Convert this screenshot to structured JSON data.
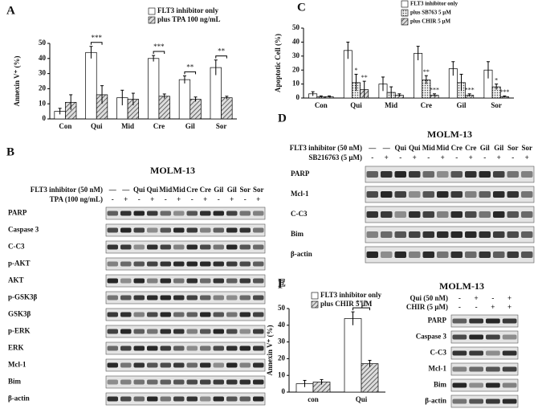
{
  "chart_data": [
    {
      "type": "bar",
      "panel": "A",
      "y_label": "Annexin V⁺ (%)",
      "categories": [
        "Con",
        "Qui",
        "Mid",
        "Cre",
        "Gil",
        "Sor"
      ],
      "series": [
        {
          "name": "FLT3 inhibitor only",
          "color": "#ffffff",
          "pattern": "none",
          "values": [
            5,
            44,
            14,
            40,
            26,
            34
          ],
          "errors": [
            2,
            4,
            5,
            2,
            2.5,
            5
          ]
        },
        {
          "name": "plus TPA 100 ng/mL",
          "color": "#999999",
          "pattern": "hatch",
          "values": [
            11,
            16,
            13,
            15,
            13,
            14
          ],
          "errors": [
            5,
            6,
            4,
            1.5,
            1.5,
            1
          ]
        }
      ],
      "ylim": [
        0,
        50
      ],
      "yticks": [
        0,
        10,
        20,
        30,
        40,
        50
      ],
      "annotations": [
        {
          "category": "Qui",
          "text": "***"
        },
        {
          "category": "Cre",
          "text": "***"
        },
        {
          "category": "Gil",
          "text": "**"
        },
        {
          "category": "Sor",
          "text": "**"
        }
      ]
    },
    {
      "type": "bar",
      "panel": "C",
      "y_label": "Apoptotic Cell (%)",
      "categories": [
        "Con",
        "Qui",
        "Mid",
        "Cre",
        "Gil",
        "Sor"
      ],
      "series": [
        {
          "name": "FLT3 inhibitor only",
          "color": "#ffffff",
          "pattern": "none",
          "values": [
            3,
            34,
            10,
            32,
            21,
            20
          ],
          "errors": [
            1.5,
            6,
            5,
            5,
            5,
            6
          ]
        },
        {
          "name": "plus SB763 5 μM",
          "color": "#bbbbbb",
          "pattern": "dots",
          "values": [
            1,
            11,
            4,
            13,
            11,
            8
          ],
          "errors": [
            0.5,
            6,
            4,
            3,
            6,
            2
          ]
        },
        {
          "name": "plus CHIR 5 μM",
          "color": "#999999",
          "pattern": "hatch",
          "values": [
            1,
            6,
            2,
            2,
            2,
            1
          ],
          "errors": [
            0.5,
            6,
            1,
            1,
            1,
            0.5
          ]
        }
      ],
      "ylim": [
        0,
        50
      ],
      "yticks": [
        0,
        10,
        20,
        30,
        40,
        50
      ],
      "annotations": [
        {
          "category": "Qui",
          "series": "plus SB763 5 μM",
          "text": "*"
        },
        {
          "category": "Qui",
          "series": "plus CHIR 5 μM",
          "text": "**"
        },
        {
          "category": "Cre",
          "series": "plus SB763 5 μM",
          "text": "**"
        },
        {
          "category": "Cre",
          "series": "plus CHIR 5 μM",
          "text": "***"
        },
        {
          "category": "Gil",
          "series": "plus CHIR 5 μM",
          "text": "***"
        },
        {
          "category": "Sor",
          "series": "plus SB763 5 μM",
          "text": "*"
        },
        {
          "category": "Sor",
          "series": "plus CHIR 5 μM",
          "text": "***"
        }
      ]
    },
    {
      "type": "bar",
      "panel": "E",
      "y_label": "Annexin V⁺ (%)",
      "categories": [
        "con",
        "Qui"
      ],
      "series": [
        {
          "name": "FLT3 inhibitor only",
          "color": "#ffffff",
          "pattern": "none",
          "values": [
            5,
            44
          ],
          "errors": [
            2,
            4
          ]
        },
        {
          "name": "plus CHIR 5 μM",
          "color": "#999999",
          "pattern": "hatch",
          "values": [
            6,
            17
          ],
          "errors": [
            1.5,
            2
          ]
        }
      ],
      "ylim": [
        0,
        50
      ],
      "yticks": [
        0,
        10,
        20,
        30,
        40,
        50
      ],
      "annotations": [
        {
          "category": "Qui",
          "text": "***"
        }
      ]
    }
  ],
  "blots": [
    {
      "panel": "B",
      "title": "MOLM-13",
      "conditions": [
        {
          "label": "FLT3 inhibitor (50 nM)",
          "lanes": [
            "—",
            "—",
            "Qui",
            "Qui",
            "Mid",
            "Mid",
            "Cre",
            "Cre",
            "Gil",
            "Gil",
            "Sor",
            "Sor"
          ]
        },
        {
          "label": "TPA (100 ng/mL)",
          "lanes": [
            "-",
            "+",
            "-",
            "+",
            "-",
            "+",
            "-",
            "+",
            "-",
            "+",
            "-",
            "+"
          ]
        }
      ],
      "proteins": [
        "PARP",
        "Caspase 3",
        "C-C3",
        "p-AKT",
        "AKT",
        "p-GSK3β",
        "GSK3β",
        "p-ERK",
        "ERK",
        "Mcl-1",
        "Bim",
        "β-actin"
      ]
    },
    {
      "panel": "D",
      "title": "MOLM-13",
      "conditions": [
        {
          "label": "FLT3 inhibitor (50 nM)",
          "lanes": [
            "—",
            "—",
            "Qui",
            "Qui",
            "Mid",
            "Mid",
            "Cre",
            "Cre",
            "Gil",
            "Gil",
            "Sor",
            "Sor"
          ]
        },
        {
          "label": "SB216763 (5 μM)",
          "lanes": [
            "-",
            "+",
            "-",
            "+",
            "-",
            "+",
            "-",
            "+",
            "-",
            "+",
            "-",
            "+"
          ]
        }
      ],
      "proteins": [
        "PARP",
        "Mcl-1",
        "C-C3",
        "Bim",
        "β-actin"
      ]
    },
    {
      "panel": "F",
      "title": "MOLM-13",
      "conditions": [
        {
          "label": "Qui (50 nM)",
          "lanes": [
            "-",
            "+",
            "-",
            "+"
          ]
        },
        {
          "label": "CHIR (5 μM)",
          "lanes": [
            "-",
            "-",
            "+",
            "+"
          ]
        }
      ],
      "proteins": [
        "PARP",
        "Caspase 3",
        "C-C3",
        "Mcl-1",
        "Bim",
        "β-actin"
      ]
    }
  ]
}
